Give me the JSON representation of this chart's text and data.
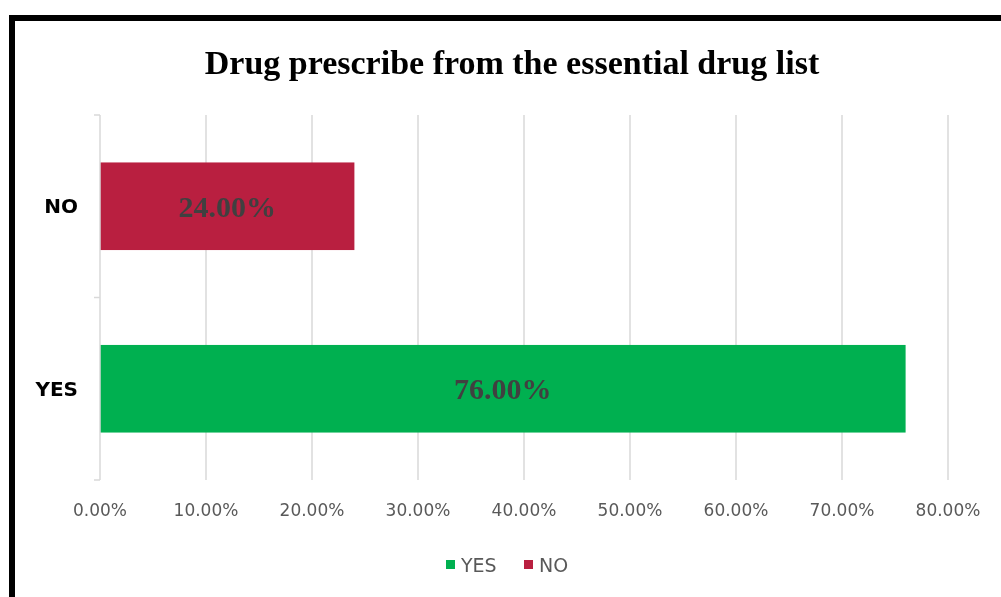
{
  "chart_data": {
    "type": "bar",
    "orientation": "horizontal",
    "title": "Drug prescribe from the essential drug list",
    "categories": [
      "NO",
      "YES"
    ],
    "series": [
      {
        "name": "YES",
        "color": "#00b050",
        "values": [
          null,
          76
        ],
        "value_labels": [
          null,
          "76.00%"
        ]
      },
      {
        "name": "NO",
        "color": "#b91f40",
        "values": [
          24,
          null
        ],
        "value_labels": [
          "24.00%",
          null
        ]
      }
    ],
    "xlim": [
      0,
      80
    ],
    "xticks": [
      {
        "value": 0,
        "label": "0.00%"
      },
      {
        "value": 10,
        "label": "10.00%"
      },
      {
        "value": 20,
        "label": "20.00%"
      },
      {
        "value": 30,
        "label": "30.00%"
      },
      {
        "value": 40,
        "label": "40.00%"
      },
      {
        "value": 50,
        "label": "50.00%"
      },
      {
        "value": 60,
        "label": "60.00%"
      },
      {
        "value": 70,
        "label": "70.00%"
      },
      {
        "value": 80,
        "label": "80.00%"
      }
    ],
    "grid": "x",
    "legend": "bottom"
  }
}
